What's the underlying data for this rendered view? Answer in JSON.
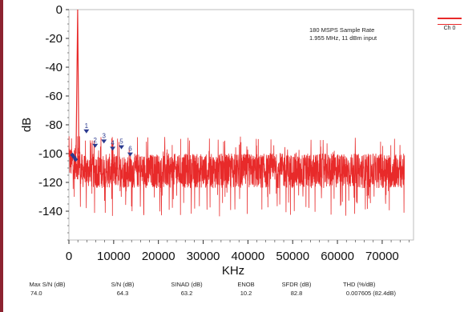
{
  "chart_data": {
    "type": "line",
    "title": "",
    "xlabel": "KHz",
    "ylabel": "dB",
    "xlim": [
      0,
      77000
    ],
    "ylim": [
      -160,
      0
    ],
    "x_ticks": [
      0,
      10000,
      20000,
      30000,
      40000,
      50000,
      60000,
      70000
    ],
    "x_tick_labels": [
      "0",
      "10000",
      "20000",
      "30000",
      "40000",
      "50000",
      "60000",
      "70000"
    ],
    "y_ticks": [
      0,
      -20,
      -40,
      -60,
      -80,
      -100,
      -120,
      -140
    ],
    "y_tick_labels": [
      "0",
      "-20",
      "-40",
      "-60",
      "-80",
      "-100",
      "-120",
      "-140"
    ],
    "annotation": [
      "180 MSPS Sample Rate",
      "1.955 MHz, 11 dBm input"
    ],
    "series": [
      {
        "name": "Ch 0",
        "color": "#e82a2a",
        "fundamental": {
          "x": 1955,
          "y": 0
        },
        "noise_floor": {
          "x_start": 0,
          "x_end": 75000,
          "center_db": -112,
          "spread_db": 12
        }
      }
    ],
    "harmonics": [
      {
        "label": "1",
        "x": 3910,
        "y": -86
      },
      {
        "label": "2",
        "x": 5865,
        "y": -96
      },
      {
        "label": "3",
        "x": 7820,
        "y": -93
      },
      {
        "label": "4",
        "x": 9775,
        "y": -98
      },
      {
        "label": "5",
        "x": 11730,
        "y": -97
      },
      {
        "label": "6",
        "x": 13685,
        "y": -102
      }
    ],
    "dc_markers": [
      {
        "x": 780,
        "y": -101
      },
      {
        "x": 1150,
        "y": -102.5
      },
      {
        "x": 1500,
        "y": -104
      }
    ],
    "grid": false
  },
  "legend": {
    "label": "Ch 0",
    "color": "#e82a2a"
  },
  "stats": [
    {
      "header": "Max S/N (dB)",
      "value": "74.0"
    },
    {
      "header": "S/N (dB)",
      "value": "64.3"
    },
    {
      "header": "SINAD (dB)",
      "value": "63.2"
    },
    {
      "header": "ENOB",
      "value": "10.2"
    },
    {
      "header": "SFDR (dB)",
      "value": "82.8"
    },
    {
      "header": "THD (%/dB)",
      "value": "0.007605 (82.4dB)"
    }
  ]
}
